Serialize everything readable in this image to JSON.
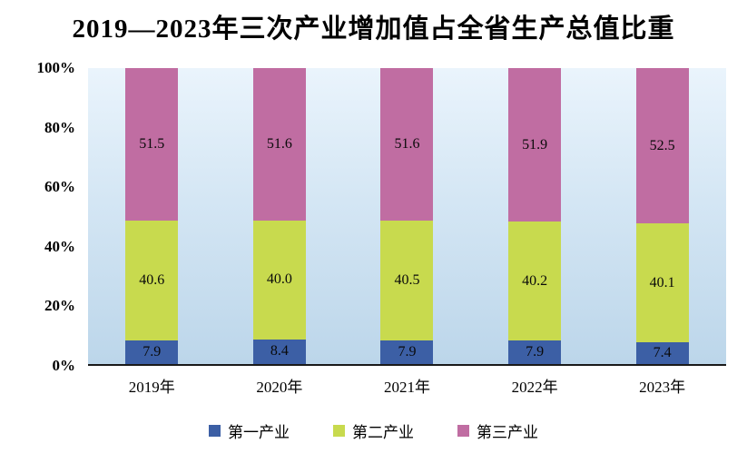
{
  "title": "2019—2023年三次产业增加值占全省生产总值比重",
  "chart_data": {
    "type": "bar",
    "stacked": true,
    "percent_stacked": true,
    "title": "2019—2023年三次产业增加值占全省生产总值比重",
    "categories": [
      "2019年",
      "2020年",
      "2021年",
      "2022年",
      "2023年"
    ],
    "series": [
      {
        "name": "第一产业",
        "color": "#3c5fa5",
        "values": [
          7.9,
          8.4,
          7.9,
          7.9,
          7.4
        ]
      },
      {
        "name": "第二产业",
        "color": "#c8da4e",
        "values": [
          40.6,
          40.0,
          40.5,
          40.2,
          40.1
        ]
      },
      {
        "name": "第三产业",
        "color": "#c06da2",
        "values": [
          51.5,
          51.6,
          51.6,
          51.9,
          52.5
        ]
      }
    ],
    "y_ticks": [
      "100%",
      "80%",
      "60%",
      "40%",
      "20%",
      "0%"
    ],
    "ylim": [
      0,
      100
    ],
    "grid": false,
    "legend_position": "bottom"
  }
}
